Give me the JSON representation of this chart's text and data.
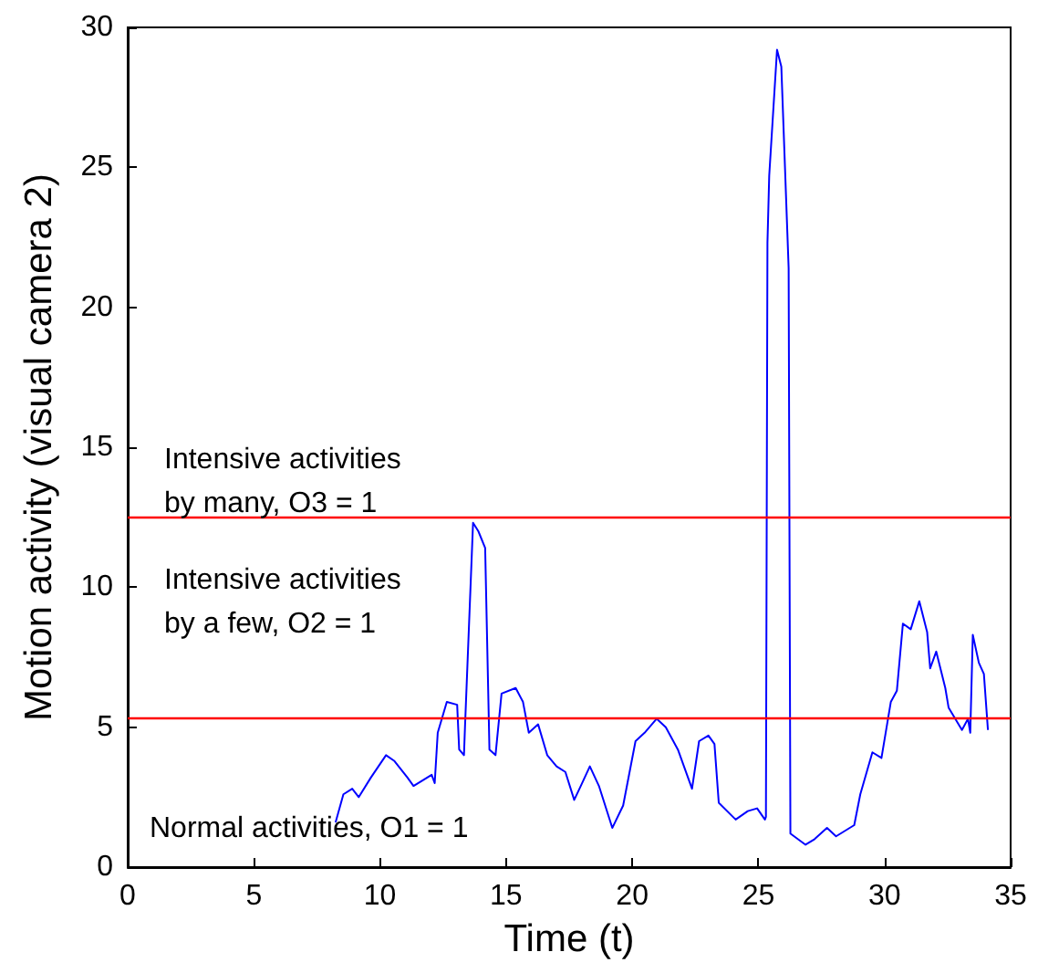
{
  "chart_data": {
    "type": "line",
    "xlabel": "Time (t)",
    "ylabel": "Motion activity (visual camera 2)",
    "xlim": [
      0,
      35
    ],
    "xticks": [
      0,
      5,
      10,
      15,
      20,
      25,
      30,
      35
    ],
    "ylim": [
      0,
      30
    ],
    "yticks": [
      0,
      5,
      10,
      15,
      20,
      25,
      30
    ],
    "grid": false,
    "marker": "none",
    "line_style": "solid",
    "series": [
      {
        "color": "#0000ff",
        "x": [
          8.24,
          8.55,
          8.9,
          9.16,
          9.64,
          10.24,
          10.56,
          11.09,
          11.33,
          12.05,
          12.17,
          12.29,
          12.65,
          13.06,
          13.14,
          13.33,
          13.37,
          13.69,
          13.9,
          14.17,
          14.34,
          14.58,
          14.82,
          15.38,
          15.67,
          15.9,
          16.27,
          16.63,
          17.0,
          17.35,
          17.7,
          17.96,
          18.32,
          18.68,
          19.21,
          19.64,
          20.13,
          20.49,
          20.97,
          21.33,
          21.81,
          22.37,
          22.65,
          23.02,
          23.26,
          23.43,
          24.1,
          24.58,
          24.95,
          25.26,
          25.3,
          25.36,
          25.43,
          25.74,
          25.91,
          26.2,
          26.27,
          26.87,
          27.23,
          27.72,
          28.08,
          28.8,
          29.04,
          29.52,
          29.88,
          30.25,
          30.49,
          30.73,
          31.04,
          31.38,
          31.69,
          31.81,
          32.05,
          32.41,
          32.54,
          33.07,
          33.31,
          33.4,
          33.5,
          33.74,
          33.94,
          34.1
        ],
        "values": [
          1.6,
          2.6,
          2.8,
          2.5,
          3.2,
          4.0,
          3.8,
          3.2,
          2.9,
          3.3,
          3.0,
          4.8,
          5.9,
          5.8,
          4.2,
          4.0,
          5.0,
          12.3,
          12.0,
          11.4,
          4.2,
          4.0,
          6.2,
          6.4,
          5.9,
          4.8,
          5.1,
          4.0,
          3.6,
          3.4,
          2.4,
          2.9,
          3.6,
          2.9,
          1.4,
          2.2,
          4.5,
          4.8,
          5.3,
          5.0,
          4.2,
          2.8,
          4.5,
          4.7,
          4.4,
          2.3,
          1.7,
          2.0,
          2.1,
          1.7,
          1.8,
          22.3,
          24.7,
          29.2,
          28.6,
          21.4,
          1.2,
          0.8,
          1.0,
          1.4,
          1.1,
          1.5,
          2.6,
          4.1,
          3.9,
          5.9,
          6.3,
          8.7,
          8.5,
          9.5,
          8.4,
          7.1,
          7.7,
          6.4,
          5.7,
          4.9,
          5.3,
          4.8,
          8.3,
          7.3,
          6.9,
          4.9
        ]
      }
    ],
    "ref_lines": [
      {
        "axis": "y",
        "value": 5.3,
        "color": "#ff0000"
      },
      {
        "axis": "y",
        "value": 12.5,
        "color": "#ff0000"
      }
    ],
    "annotations": [
      "Intensive activities\nby many, O3 = 1",
      "Intensive activities\nby a few, O2 = 1",
      "Normal activities, O1 = 1"
    ]
  }
}
